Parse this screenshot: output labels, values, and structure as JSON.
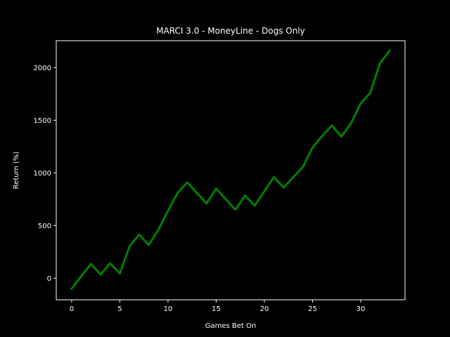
{
  "chart_data": {
    "type": "line",
    "title": "MARCI 3.0 - MoneyLine - Dogs Only",
    "xlabel": "Games Bet On",
    "ylabel": "Return (%)",
    "xlim": [
      -1.6,
      34.6
    ],
    "ylim": [
      -205,
      2255
    ],
    "xticks": [
      0,
      5,
      10,
      15,
      20,
      25,
      30
    ],
    "yticks": [
      0,
      500,
      1000,
      1500,
      2000
    ],
    "grid": false,
    "series": [
      {
        "color": "#008000",
        "x": [
          0,
          1,
          2,
          3,
          4,
          5,
          6,
          7,
          8,
          9,
          10,
          11,
          12,
          13,
          14,
          15,
          16,
          17,
          18,
          19,
          20,
          21,
          22,
          23,
          24,
          25,
          26,
          27,
          28,
          29,
          30,
          31,
          32,
          33
        ],
        "y": [
          -100,
          20,
          135,
          35,
          140,
          45,
          300,
          415,
          315,
          460,
          640,
          810,
          910,
          810,
          710,
          850,
          750,
          650,
          785,
          690,
          825,
          960,
          860,
          960,
          1055,
          1240,
          1350,
          1450,
          1345,
          1470,
          1660,
          1760,
          2040,
          2160
        ]
      }
    ]
  },
  "colors": {
    "background": "#000000",
    "axes": "#ffffff",
    "text": "#ffffff"
  }
}
